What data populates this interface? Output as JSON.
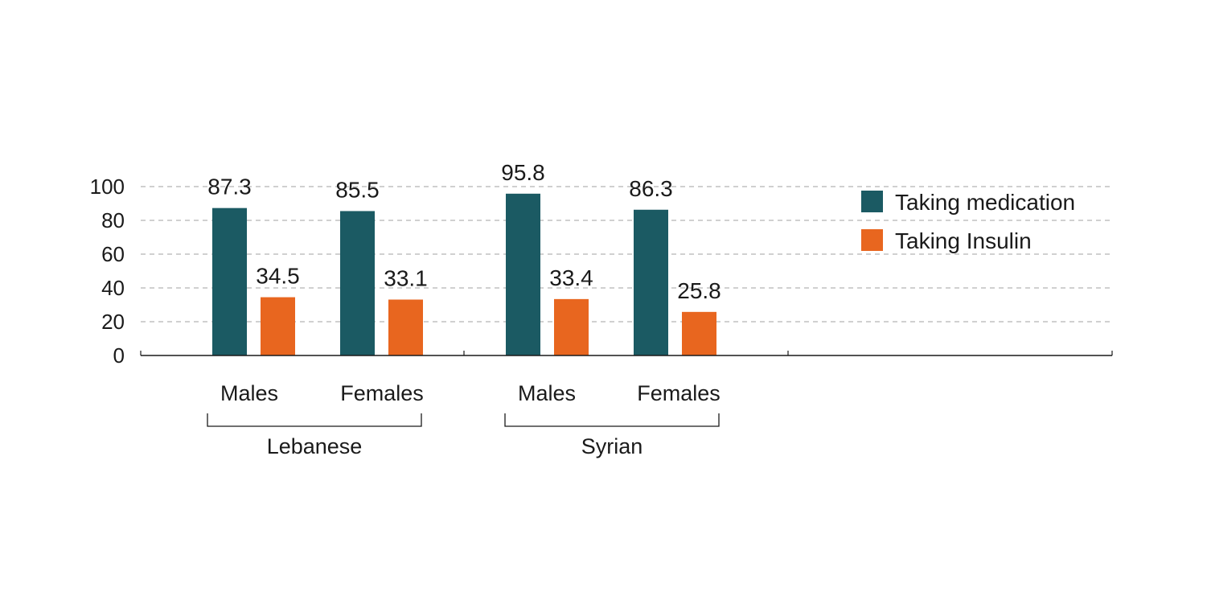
{
  "chart_data": {
    "type": "bar",
    "groups": [
      {
        "name": "Lebanese",
        "categories": [
          "Males",
          "Females"
        ]
      },
      {
        "name": "Syrian",
        "categories": [
          "Males",
          "Females"
        ]
      }
    ],
    "categories": [
      "Males",
      "Females",
      "Males",
      "Females"
    ],
    "series": [
      {
        "name": "Taking medication",
        "color": "#1b5a63",
        "values": [
          87.3,
          85.5,
          95.8,
          86.3
        ]
      },
      {
        "name": "Taking Insulin",
        "color": "#e8661f",
        "values": [
          34.5,
          33.1,
          33.4,
          25.8
        ]
      }
    ],
    "ylim": [
      0,
      100
    ],
    "yticks": [
      0,
      20,
      40,
      60,
      80,
      100
    ],
    "grid": true,
    "legend": "top-right",
    "title": "",
    "xlabel": "",
    "ylabel": ""
  }
}
